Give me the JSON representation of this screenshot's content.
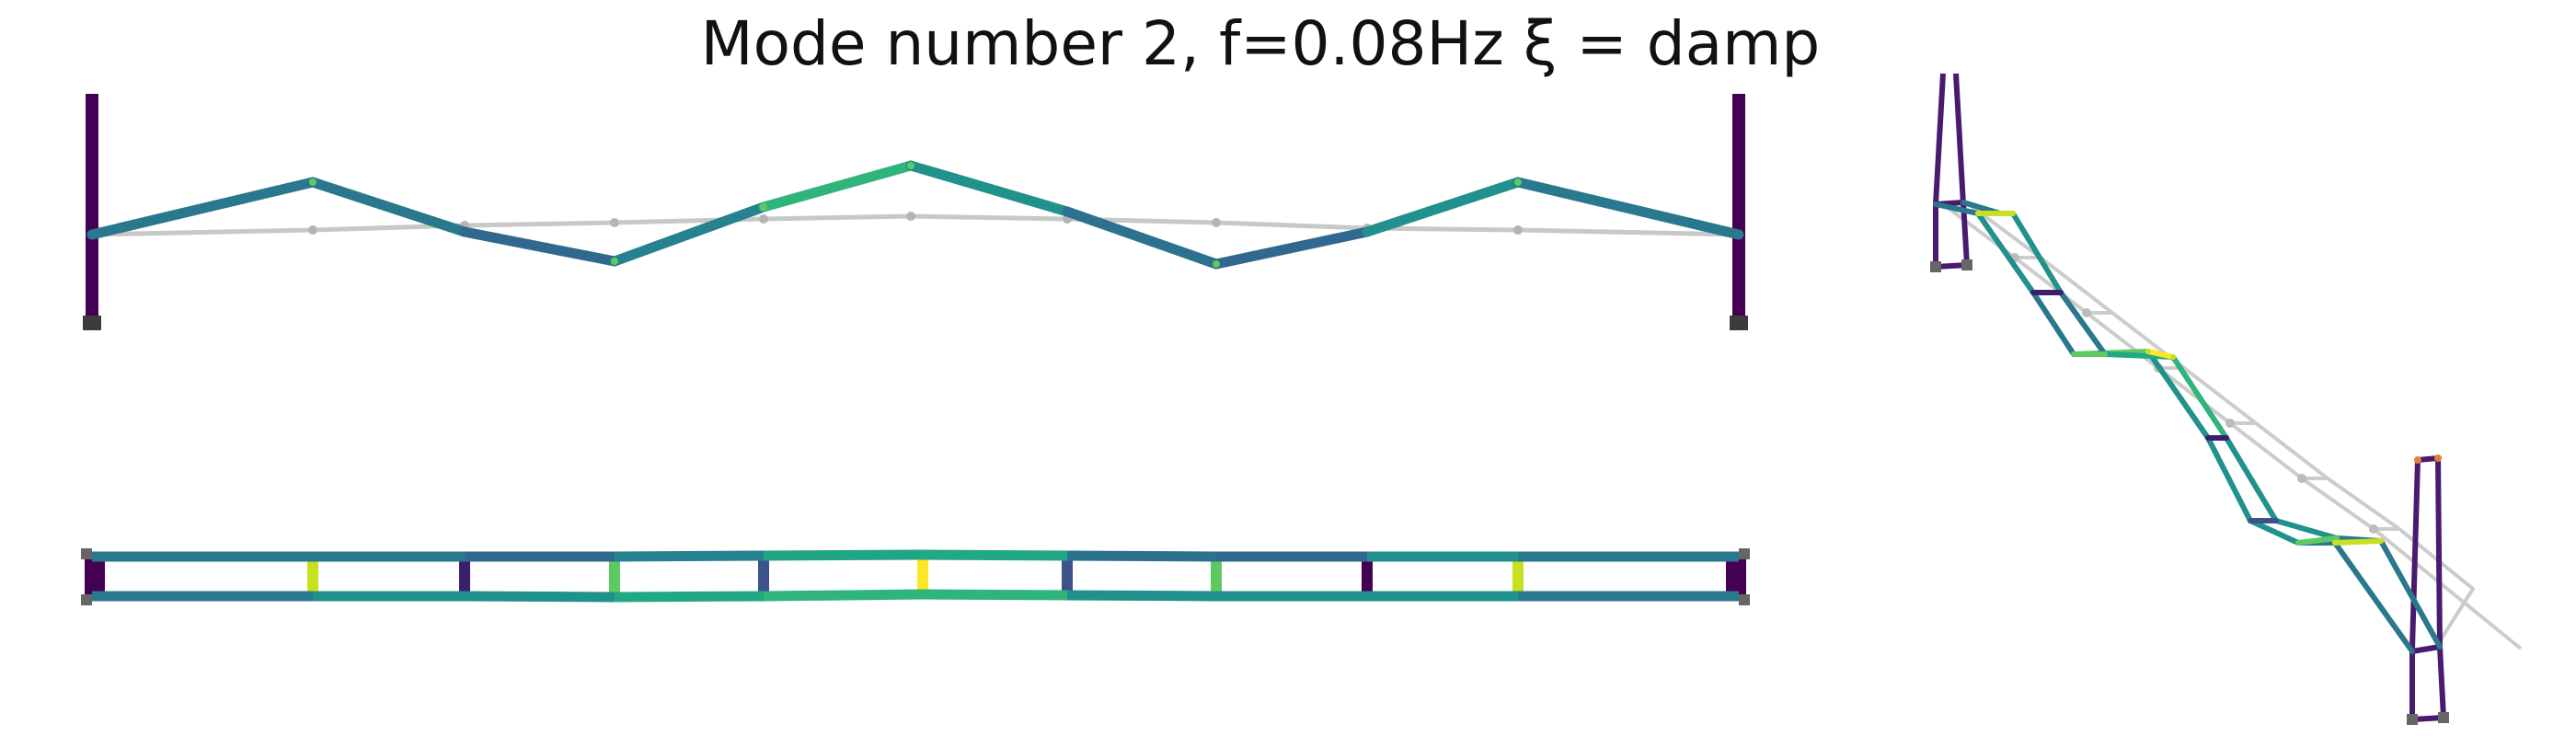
{
  "title": "Mode number 2, f=0.08Hz ξ =  damp",
  "colormap": {
    "name": "viridis",
    "stops": [
      "#440154",
      "#3b528b",
      "#21918c",
      "#5ec962",
      "#fde725"
    ]
  },
  "undeformed_color": "#c8c8c8",
  "support_color": "#444444"
}
